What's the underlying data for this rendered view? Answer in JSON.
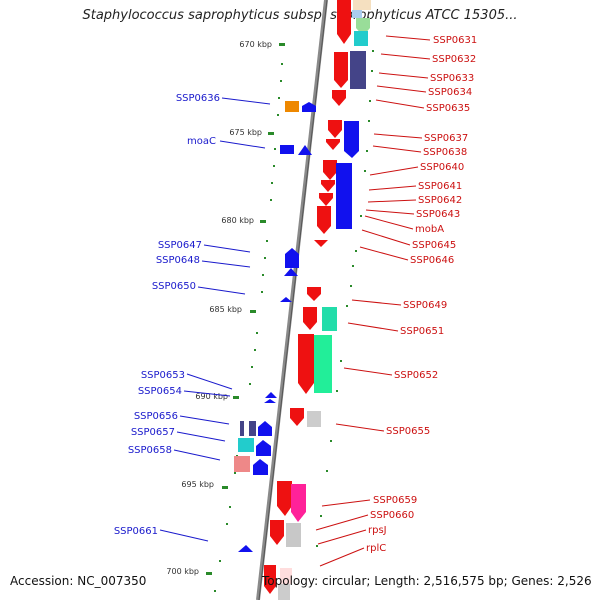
{
  "title": "Staphylococcus saprophyticus subsp. saprophyticus ATCC 15305...",
  "footer": {
    "accession": "Accession: NC_007350",
    "summary": "Topology: circular; Length: 2,516,575 bp; Genes: 2,526"
  },
  "scale_ticks": [
    "670 kbp",
    "675 kbp",
    "680 kbp",
    "685 kbp",
    "690 kbp",
    "695 kbp",
    "700 kbp"
  ],
  "left_labels": [
    "SSP0636",
    "moaC",
    "SSP0647",
    "SSP0648",
    "SSP0650",
    "SSP0653",
    "SSP0654",
    "SSP0656",
    "SSP0657",
    "SSP0658",
    "SSP0661"
  ],
  "right_labels": [
    "SSP0631",
    "SSP0632",
    "SSP0633",
    "SSP0634",
    "SSP0635",
    "SSP0637",
    "SSP0638",
    "SSP0640",
    "SSP0641",
    "SSP0642",
    "SSP0643",
    "mobA",
    "SSP0645",
    "SSP0646",
    "SSP0649",
    "SSP0651",
    "SSP0652",
    "SSP0655",
    "SSP0659",
    "SSP0660",
    "rpsJ",
    "rplC"
  ],
  "colors": {
    "forward_label": "#1a1acc",
    "reverse_label": "#cc1111",
    "backbone": "#777777",
    "tick": "#2a8a2a"
  }
}
